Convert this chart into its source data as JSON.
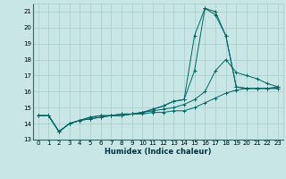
{
  "xlabel": "Humidex (Indice chaleur)",
  "xlim": [
    -0.5,
    23.5
  ],
  "ylim": [
    13,
    21.5
  ],
  "yticks": [
    13,
    14,
    15,
    16,
    17,
    18,
    19,
    20,
    21
  ],
  "xticks": [
    0,
    1,
    2,
    3,
    4,
    5,
    6,
    7,
    8,
    9,
    10,
    11,
    12,
    13,
    14,
    15,
    16,
    17,
    18,
    19,
    20,
    21,
    22,
    23
  ],
  "bg_color": "#c8e6e6",
  "grid_color": "#a8cccc",
  "line_color": "#006666",
  "series": [
    {
      "x": [
        0,
        1,
        2,
        3,
        4,
        5,
        6,
        7,
        8,
        9,
        10,
        11,
        12,
        13,
        14,
        15,
        16,
        17,
        18,
        19,
        20,
        21,
        22,
        23
      ],
      "y": [
        14.5,
        14.5,
        13.5,
        14.0,
        14.2,
        14.3,
        14.4,
        14.5,
        14.5,
        14.6,
        14.6,
        14.7,
        14.7,
        14.8,
        14.8,
        15.0,
        15.3,
        15.6,
        15.9,
        16.1,
        16.2,
        16.2,
        16.2,
        16.3
      ]
    },
    {
      "x": [
        0,
        1,
        2,
        3,
        4,
        5,
        6,
        7,
        8,
        9,
        10,
        11,
        12,
        13,
        14,
        15,
        16,
        17,
        18,
        19,
        20,
        21,
        22,
        23
      ],
      "y": [
        14.5,
        14.5,
        13.5,
        14.0,
        14.2,
        14.3,
        14.4,
        14.5,
        14.5,
        14.6,
        14.7,
        14.8,
        14.9,
        15.0,
        15.2,
        15.5,
        16.0,
        17.3,
        18.0,
        17.2,
        17.0,
        16.8,
        16.5,
        16.3
      ]
    },
    {
      "x": [
        0,
        1,
        2,
        3,
        4,
        5,
        6,
        7,
        8,
        9,
        10,
        11,
        12,
        13,
        14,
        15,
        16,
        17,
        18,
        19,
        20,
        21,
        22,
        23
      ],
      "y": [
        14.5,
        14.5,
        13.5,
        14.0,
        14.2,
        14.4,
        14.5,
        14.5,
        14.6,
        14.6,
        14.7,
        14.9,
        15.1,
        15.4,
        15.5,
        17.3,
        21.2,
        20.8,
        19.5,
        16.3,
        16.2,
        16.2,
        16.2,
        16.2
      ]
    },
    {
      "x": [
        0,
        1,
        2,
        3,
        4,
        5,
        6,
        7,
        8,
        9,
        10,
        11,
        12,
        13,
        14,
        15,
        16,
        17,
        18,
        19,
        20,
        21,
        22,
        23
      ],
      "y": [
        14.5,
        14.5,
        13.5,
        14.0,
        14.2,
        14.4,
        14.5,
        14.5,
        14.6,
        14.6,
        14.7,
        14.9,
        15.1,
        15.4,
        15.5,
        19.5,
        21.2,
        21.0,
        19.5,
        16.3,
        16.2,
        16.2,
        16.2,
        16.2
      ]
    }
  ]
}
